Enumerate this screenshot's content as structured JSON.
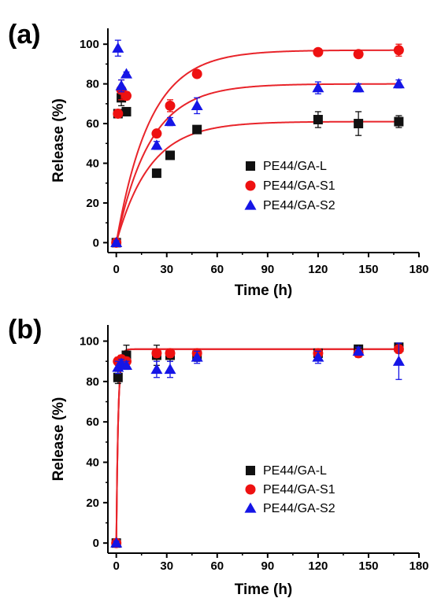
{
  "colors": {
    "L": "#111111",
    "S1": "#ee1111",
    "S2": "#1515e6",
    "fit": "#e8242a"
  },
  "chart_data": [
    {
      "type": "scatter",
      "panel_label": "(a)",
      "xlabel": "Time (h)",
      "ylabel": "Release (%)",
      "xlim": [
        -5,
        180
      ],
      "ylim": [
        -5,
        108
      ],
      "xticks": [
        0,
        30,
        60,
        90,
        120,
        150,
        180
      ],
      "yticks": [
        0,
        20,
        40,
        60,
        80,
        100
      ],
      "grid": false,
      "legend": "center-right",
      "series": [
        {
          "name": "PE44/GA-L",
          "marker": "square",
          "color_key": "L",
          "x": [
            0,
            1,
            3,
            6,
            24,
            32,
            48,
            120,
            144,
            168
          ],
          "y": [
            0,
            65,
            73,
            66,
            35,
            44,
            57,
            62,
            60,
            61
          ],
          "err": [
            1,
            2,
            4,
            2,
            1,
            1,
            1,
            4,
            6,
            3
          ],
          "fit": {
            "plateau": 61,
            "k": 0.05
          }
        },
        {
          "name": "PE44/GA-S1",
          "marker": "circle",
          "color_key": "S1",
          "x": [
            0,
            1,
            3,
            6,
            24,
            32,
            48,
            120,
            144,
            168
          ],
          "y": [
            0,
            65,
            77,
            74,
            55,
            69,
            85,
            96,
            95,
            97
          ],
          "err": [
            1,
            2,
            5,
            2,
            1,
            3,
            1,
            1,
            1,
            3
          ],
          "fit": {
            "plateau": 97,
            "k": 0.05
          }
        },
        {
          "name": "PE44/GA-S2",
          "marker": "triangle",
          "color_key": "S2",
          "x": [
            0,
            1,
            3,
            6,
            24,
            32,
            48,
            120,
            144,
            168
          ],
          "y": [
            0,
            98,
            79,
            85,
            49,
            61,
            69,
            78,
            78,
            80
          ],
          "err": [
            1,
            4,
            3,
            1,
            2,
            2,
            4,
            3,
            2,
            2
          ],
          "fit": {
            "plateau": 80,
            "k": 0.05
          }
        }
      ]
    },
    {
      "type": "scatter",
      "panel_label": "(b)",
      "xlabel": "Time (h)",
      "ylabel": "Release (%)",
      "xlim": [
        -5,
        180
      ],
      "ylim": [
        -5,
        108
      ],
      "xticks": [
        0,
        30,
        60,
        90,
        120,
        150,
        180
      ],
      "yticks": [
        0,
        20,
        40,
        60,
        80,
        100
      ],
      "grid": false,
      "legend": "center-right",
      "series": [
        {
          "name": "PE44/GA-L",
          "marker": "square",
          "color_key": "L",
          "x": [
            0,
            1,
            3,
            6,
            24,
            32,
            48,
            120,
            144,
            168
          ],
          "y": [
            0,
            82,
            90,
            93,
            93,
            93,
            93,
            94,
            96,
            97
          ],
          "err": [
            1,
            3,
            2,
            5,
            5,
            3,
            3,
            2,
            2,
            2
          ],
          "fit": {
            "plateau": 96,
            "k": 0.9
          }
        },
        {
          "name": "PE44/GA-S1",
          "marker": "circle",
          "color_key": "S1",
          "x": [
            0,
            1,
            3,
            6,
            24,
            32,
            48,
            120,
            144,
            168
          ],
          "y": [
            0,
            90,
            91,
            90,
            94,
            94,
            94,
            94,
            94,
            96
          ],
          "err": [
            1,
            2,
            2,
            2,
            2,
            2,
            2,
            2,
            2,
            2
          ],
          "fit": {
            "plateau": 96,
            "k": 0.9
          }
        },
        {
          "name": "PE44/GA-S2",
          "marker": "triangle",
          "color_key": "S2",
          "x": [
            0,
            1,
            3,
            6,
            24,
            32,
            48,
            120,
            144,
            168
          ],
          "y": [
            0,
            87,
            89,
            88,
            86,
            86,
            92,
            92,
            95,
            90
          ],
          "err": [
            1,
            3,
            2,
            2,
            4,
            4,
            3,
            3,
            2,
            9
          ],
          "fit": {
            "plateau": 96,
            "k": 0.9
          }
        }
      ]
    }
  ]
}
